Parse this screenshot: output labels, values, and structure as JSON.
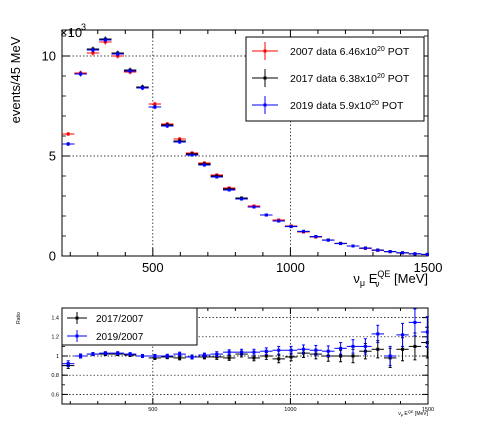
{
  "chart_data": [
    {
      "type": "scatter",
      "title": "",
      "xlabel": "ν_μ E_ν^QE [MeV]",
      "xlabel_parts": {
        "main": "ν",
        "main_sub": "μ",
        "e": " E",
        "e_sub": "ν",
        "e_sup": "QE",
        "unit": " [MeV]"
      },
      "ylabel": "events/45 MeV",
      "y_multiplier": "×10",
      "y_multiplier_exp": "3",
      "xlim": [
        170,
        1500
      ],
      "ylim": [
        0,
        11.3
      ],
      "xticks": [
        500,
        1000,
        1500
      ],
      "yticks": [
        0,
        5,
        10
      ],
      "grid": true,
      "grid_x": [
        500,
        1000
      ],
      "grid_y": [
        5,
        10
      ],
      "legend_position": "top-right",
      "x": [
        192.5,
        237.5,
        282.5,
        327.5,
        372.5,
        417.5,
        462.5,
        507.5,
        552.5,
        597.5,
        642.5,
        687.5,
        732.5,
        777.5,
        822.5,
        867.5,
        912.5,
        957.5,
        1002.5,
        1047.5,
        1092.5,
        1137.5,
        1182.5,
        1227.5,
        1272.5,
        1317.5,
        1362.5,
        1407.5,
        1452.5,
        1497.5
      ],
      "series": [
        {
          "name": "2007 data 6.46x10^20 POT",
          "label_main": "2007 data 6.46x10",
          "label_exp": "20",
          "label_tail": " POT",
          "color": "#ff0000",
          "values": [
            6.1,
            9.15,
            10.15,
            10.7,
            10.0,
            9.2,
            8.45,
            7.6,
            6.6,
            5.85,
            5.15,
            4.65,
            4.05,
            3.4,
            2.85,
            2.5,
            2.05,
            1.8,
            1.5,
            1.2,
            0.95,
            0.8,
            0.63,
            0.5,
            0.38,
            0.28,
            0.22,
            0.15,
            0.1,
            0.07
          ]
        },
        {
          "name": "2017 data 6.38x10^20 POT",
          "label_main": "2017 data 6.38x10",
          "label_exp": "20",
          "label_tail": " POT",
          "color": "#000000",
          "values": [
            5.6,
            9.1,
            10.35,
            10.85,
            10.15,
            9.3,
            8.45,
            7.45,
            6.55,
            5.75,
            5.1,
            4.6,
            4.0,
            3.35,
            2.9,
            2.45,
            2.05,
            1.75,
            1.48,
            1.23,
            0.97,
            0.8,
            0.63,
            0.5,
            0.4,
            0.3,
            0.22,
            0.16,
            0.11,
            0.08
          ]
        },
        {
          "name": "2019 data 5.9x10^20 POT",
          "label_main": "2019 data 5.9x10",
          "label_exp": "20",
          "label_tail": " POT",
          "color": "#0000ff",
          "values": [
            5.6,
            9.1,
            10.3,
            10.8,
            10.1,
            9.25,
            8.4,
            7.45,
            6.5,
            5.7,
            5.05,
            4.55,
            3.95,
            3.3,
            2.85,
            2.45,
            2.05,
            1.75,
            1.47,
            1.23,
            0.97,
            0.79,
            0.62,
            0.5,
            0.39,
            0.29,
            0.22,
            0.16,
            0.11,
            0.08
          ]
        }
      ]
    },
    {
      "type": "scatter",
      "title": "",
      "xlabel": "ν_μ E_ν^QE [MeV]",
      "xlabel_parts": {
        "main": "ν",
        "main_sub": "μ",
        "e": " E",
        "e_sub": "ν",
        "e_sup": "QE",
        "unit": " [MeV]"
      },
      "ylabel": "Ratio",
      "xlim": [
        170,
        1500
      ],
      "ylim": [
        0.5,
        1.5
      ],
      "xticks": [
        500,
        1000,
        1500
      ],
      "yticks": [
        0.6,
        0.8,
        1,
        1.2,
        1.4
      ],
      "ytick_labels": [
        "0.6",
        "0.8",
        "1",
        "1.2",
        "1.4"
      ],
      "grid": true,
      "grid_x": [
        500,
        1000
      ],
      "grid_y": [
        0.6,
        0.8,
        1.0,
        1.2,
        1.4
      ],
      "legend_position": "top-left",
      "x": [
        192.5,
        237.5,
        282.5,
        327.5,
        372.5,
        417.5,
        462.5,
        507.5,
        552.5,
        597.5,
        642.5,
        687.5,
        732.5,
        777.5,
        822.5,
        867.5,
        912.5,
        957.5,
        1002.5,
        1047.5,
        1092.5,
        1137.5,
        1182.5,
        1227.5,
        1272.5,
        1317.5,
        1362.5,
        1407.5,
        1452.5,
        1497.5
      ],
      "series": [
        {
          "name": "2017/2007",
          "color": "#000000",
          "values": [
            0.9,
            1.0,
            1.02,
            1.02,
            1.02,
            1.01,
            1.0,
            0.98,
            0.99,
            0.98,
            0.99,
            0.99,
            0.99,
            0.98,
            1.02,
            0.98,
            1.0,
            0.97,
            0.99,
            1.03,
            1.02,
            1.0,
            1.0,
            1.0,
            1.05,
            1.07,
            0.98,
            1.07,
            1.1,
            1.14
          ],
          "errors": [
            0.03,
            0.02,
            0.015,
            0.015,
            0.015,
            0.015,
            0.015,
            0.016,
            0.018,
            0.02,
            0.02,
            0.02,
            0.025,
            0.025,
            0.03,
            0.03,
            0.035,
            0.04,
            0.04,
            0.045,
            0.05,
            0.055,
            0.06,
            0.07,
            0.08,
            0.09,
            0.1,
            0.12,
            0.14,
            0.16
          ]
        },
        {
          "name": "2019/2007",
          "color": "#0000ff",
          "values": [
            0.92,
            1.0,
            1.02,
            1.03,
            1.03,
            1.02,
            1.0,
            1.0,
            1.0,
            1.02,
            0.99,
            1.01,
            1.02,
            1.04,
            1.04,
            1.04,
            1.05,
            1.06,
            1.06,
            1.07,
            1.06,
            1.05,
            1.08,
            1.1,
            1.1,
            1.23,
            1.0,
            1.22,
            1.35,
            1.25
          ],
          "errors": [
            0.03,
            0.02,
            0.015,
            0.015,
            0.015,
            0.015,
            0.015,
            0.016,
            0.018,
            0.02,
            0.02,
            0.02,
            0.025,
            0.025,
            0.03,
            0.03,
            0.035,
            0.04,
            0.04,
            0.045,
            0.05,
            0.055,
            0.06,
            0.07,
            0.08,
            0.09,
            0.1,
            0.12,
            0.14,
            0.16
          ]
        }
      ]
    }
  ]
}
